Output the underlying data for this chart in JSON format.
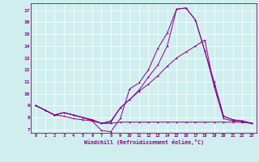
{
  "xlabel": "Windchill (Refroidissement éolien,°C)",
  "background_color": "#d0eeee",
  "line_color": "#880088",
  "grid_color": "#bbdddd",
  "xlim": [
    -0.5,
    23.5
  ],
  "ylim": [
    6.7,
    17.6
  ],
  "xticks": [
    0,
    1,
    2,
    3,
    4,
    5,
    6,
    7,
    8,
    9,
    10,
    11,
    12,
    13,
    14,
    15,
    16,
    17,
    18,
    19,
    20,
    21,
    22,
    23
  ],
  "yticks": [
    7,
    8,
    9,
    10,
    11,
    12,
    13,
    14,
    15,
    16,
    17
  ],
  "line1": [
    9.0,
    8.6,
    8.2,
    8.1,
    7.9,
    7.8,
    7.7,
    6.9,
    6.8,
    7.9,
    10.4,
    10.9,
    12.0,
    13.8,
    15.1,
    17.1,
    17.2,
    16.2,
    13.6,
    10.7,
    8.1,
    7.8,
    7.7,
    7.5
  ],
  "line2": [
    9.0,
    8.6,
    8.2,
    8.4,
    8.2,
    8.0,
    7.8,
    7.5,
    7.7,
    8.8,
    9.5,
    10.3,
    11.4,
    12.4,
    14.0,
    17.1,
    17.2,
    16.2,
    13.6,
    11.0,
    8.1,
    7.8,
    7.7,
    7.5
  ],
  "line3": [
    9.0,
    8.6,
    8.2,
    8.4,
    8.2,
    8.0,
    7.8,
    7.5,
    7.6,
    8.8,
    9.5,
    10.2,
    10.8,
    11.5,
    12.3,
    13.0,
    13.5,
    14.0,
    14.5,
    10.6,
    7.9,
    7.7,
    7.6,
    7.5
  ],
  "line4": [
    9.0,
    8.6,
    8.2,
    8.4,
    8.2,
    8.0,
    7.7,
    7.5,
    7.5,
    7.6,
    7.6,
    7.6,
    7.6,
    7.6,
    7.6,
    7.6,
    7.6,
    7.6,
    7.6,
    7.6,
    7.6,
    7.6,
    7.6,
    7.5
  ]
}
